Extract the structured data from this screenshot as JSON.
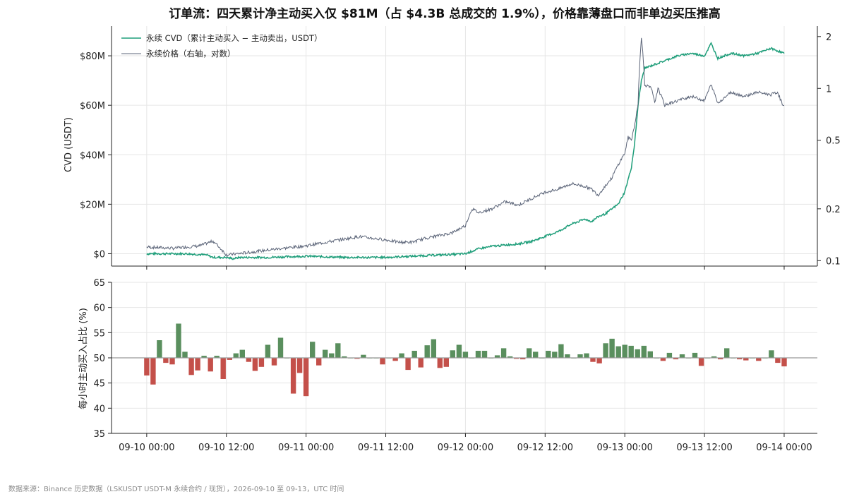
{
  "title": "订单流：四天累计净主动买入仅 $81M（占 $4.3B 总成交的 1.9%），价格靠薄盘口而非单边买压推高",
  "footer": "数据来源：Binance 历史数据（LSKUSDT USDT-M 永续合约 / 现货），2026-09-10 至 09-13，UTC 时间",
  "colors": {
    "cvd": "#1f9e7a",
    "price": "#5b6478",
    "buy": "#5a8f5e",
    "sell": "#c4504a",
    "grid": "#e6e6e6",
    "axis": "#222222",
    "refline": "#999999"
  },
  "chart_data": [
    {
      "type": "line",
      "ylabel": "CVD (USDT)",
      "y2label": "",
      "ylim_millions": [
        -5,
        92
      ],
      "y_ticks": [
        "$0",
        "$20M",
        "$40M",
        "$60M",
        "$80M"
      ],
      "y_tick_values_millions": [
        0,
        20,
        40,
        60,
        80
      ],
      "y2_scale": "log",
      "y2lim": [
        0.093,
        2.3
      ],
      "y2_ticks": [
        "0.1",
        "0.2",
        "0.5",
        "1",
        "2"
      ],
      "y2_tick_values": [
        0.1,
        0.2,
        0.5,
        1,
        2
      ],
      "x_ticks": [
        "09-10 00:00",
        "09-10 12:00",
        "09-11 00:00",
        "09-11 12:00",
        "09-12 00:00",
        "09-12 12:00",
        "09-13 00:00",
        "09-13 12:00",
        "09-14 00:00"
      ],
      "x_tick_hours": [
        0,
        12,
        24,
        36,
        48,
        60,
        72,
        84,
        96
      ],
      "xlim_hours": [
        -5.3,
        101
      ],
      "grid": true,
      "legend_position": "top-left",
      "series": [
        {
          "name": "永续 CVD（累计主动买入 − 主动卖出，USDT）",
          "axis": "left",
          "unit": "millions USDT",
          "x_hours": [
            0,
            6,
            9,
            10,
            12,
            13,
            14,
            18,
            24,
            30,
            36,
            40,
            44,
            46,
            48,
            50,
            52,
            54,
            56,
            58,
            60,
            62,
            64,
            66,
            67,
            68,
            69,
            70,
            71,
            72,
            73,
            73.5,
            74,
            74.5,
            75,
            76,
            78,
            80,
            82,
            84,
            85,
            86,
            88,
            90,
            92,
            94,
            95,
            96
          ],
          "values": [
            0,
            0,
            -0.5,
            -1.5,
            -1.5,
            -2,
            -1.5,
            -1.5,
            -1,
            -1.5,
            -1.5,
            -1,
            -0.5,
            -0.3,
            0,
            2,
            3,
            3.5,
            4,
            5,
            7,
            9,
            12,
            14,
            13,
            15,
            16,
            18,
            20,
            25,
            35,
            45,
            60,
            70,
            75,
            76,
            78,
            80,
            81,
            80,
            85,
            79,
            81,
            80,
            81,
            83,
            82,
            81
          ]
        },
        {
          "name": "永续价格（右轴，对数）",
          "axis": "right",
          "unit": "USDT",
          "x_hours": [
            0,
            4,
            8,
            10,
            12,
            14,
            18,
            24,
            28,
            32,
            36,
            38,
            40,
            42,
            44,
            46,
            48,
            49,
            50,
            52,
            54,
            56,
            58,
            60,
            62,
            64,
            66,
            67,
            68,
            69,
            70,
            70.5,
            71,
            72,
            72.5,
            73,
            73.5,
            74,
            74.5,
            75,
            76,
            76.5,
            77,
            78,
            80,
            82,
            84,
            85,
            86,
            88,
            90,
            92,
            94,
            95,
            95.5,
            96
          ],
          "values": [
            0.12,
            0.118,
            0.122,
            0.13,
            0.108,
            0.11,
            0.115,
            0.122,
            0.13,
            0.138,
            0.132,
            0.128,
            0.128,
            0.135,
            0.14,
            0.145,
            0.16,
            0.2,
            0.19,
            0.2,
            0.22,
            0.21,
            0.23,
            0.25,
            0.26,
            0.28,
            0.27,
            0.26,
            0.24,
            0.27,
            0.3,
            0.33,
            0.36,
            0.42,
            0.52,
            0.5,
            0.62,
            0.8,
            2.0,
            1.05,
            1.0,
            0.82,
            1.0,
            0.8,
            0.85,
            0.9,
            0.85,
            1.05,
            0.82,
            0.95,
            0.9,
            0.95,
            0.92,
            0.95,
            0.85,
            0.78
          ]
        }
      ]
    },
    {
      "type": "bar",
      "ylabel": "每小时主动买入占比 (%)",
      "ylim": [
        35,
        65
      ],
      "y_ticks": [
        "35",
        "40",
        "45",
        "50",
        "55",
        "60",
        "65"
      ],
      "y_tick_values": [
        35,
        40,
        45,
        50,
        55,
        60,
        65
      ],
      "baseline": 50,
      "x_ticks": [
        "09-10 00:00",
        "09-10 12:00",
        "09-11 00:00",
        "09-11 12:00",
        "09-12 00:00",
        "09-12 12:00",
        "09-13 00:00",
        "09-13 12:00",
        "09-14 00:00"
      ],
      "x_tick_hours": [
        0,
        12,
        24,
        36,
        48,
        60,
        72,
        84,
        96
      ],
      "grid": true,
      "values": [
        46.5,
        44.7,
        53.5,
        49.0,
        48.7,
        56.8,
        51.2,
        46.6,
        47.5,
        50.4,
        47.3,
        50.4,
        45.8,
        49.6,
        50.9,
        51.6,
        49.2,
        47.4,
        48.2,
        52.6,
        48.5,
        54.0,
        50.0,
        42.9,
        47.0,
        42.4,
        53.2,
        48.5,
        51.6,
        50.9,
        52.9,
        50.3,
        50.0,
        49.8,
        50.6,
        50.0,
        50.0,
        48.7,
        50.0,
        49.4,
        50.9,
        47.6,
        51.4,
        48.1,
        52.5,
        53.7,
        48.0,
        48.2,
        51.5,
        52.6,
        51.2,
        50.0,
        51.4,
        51.4,
        50.0,
        50.5,
        51.9,
        50.3,
        49.8,
        49.7,
        51.9,
        51.2,
        50.0,
        51.4,
        51.2,
        52.7,
        50.7,
        50.0,
        50.7,
        50.9,
        49.2,
        48.9,
        52.9,
        53.8,
        52.3,
        52.6,
        52.4,
        51.7,
        52.4,
        51.3,
        50.0,
        49.4,
        51.0,
        49.7,
        50.7,
        50.0,
        51.0,
        48.4,
        50.0,
        50.3,
        49.7,
        51.9,
        50.0,
        49.7,
        49.5,
        50.0,
        49.4,
        50.0,
        51.5,
        49.0,
        48.3
      ]
    }
  ]
}
